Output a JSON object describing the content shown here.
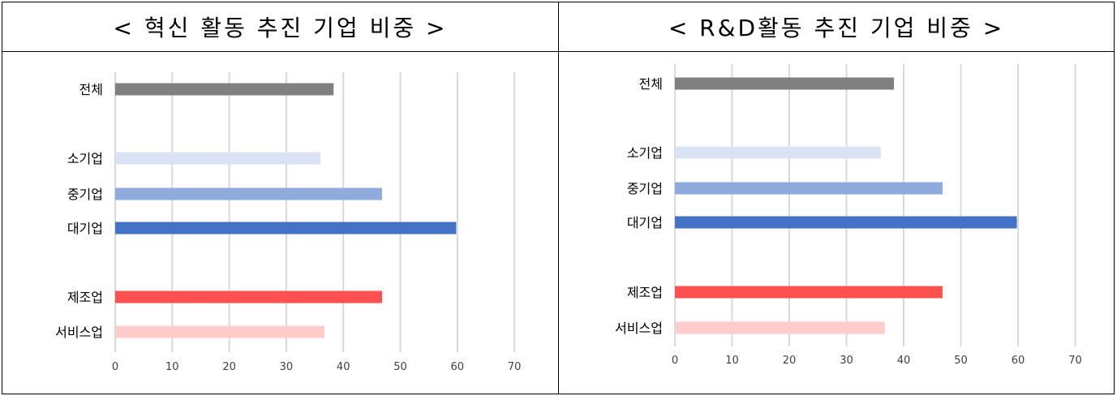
{
  "chart_data": [
    {
      "type": "bar",
      "orientation": "horizontal",
      "title": "< 혁신 활동 추진 기업 비중 >",
      "categories": [
        "전체",
        "소기업",
        "중기업",
        "대기업",
        "제조업",
        "서비스업"
      ],
      "values": [
        38.3,
        36,
        46.8,
        59.8,
        46.8,
        36.7
      ],
      "colors": [
        "#808080",
        "#DAE3F3",
        "#8FAADC",
        "#4472C4",
        "#FF5050",
        "#FFCCCC"
      ],
      "xlim": [
        0,
        70
      ],
      "xticks": [
        "0",
        "10",
        "20",
        "30",
        "40",
        "50",
        "60",
        "70"
      ],
      "grid": true,
      "legend": "none"
    },
    {
      "type": "bar",
      "orientation": "horizontal",
      "title": "< R&D활동 추진 기업 비중 >",
      "categories": [
        "전체",
        "소기업",
        "중기업",
        "대기업",
        "제조업",
        "서비스업"
      ],
      "values": [
        38.3,
        36,
        46.8,
        59.8,
        46.8,
        36.7
      ],
      "colors": [
        "#808080",
        "#DAE3F3",
        "#8FAADC",
        "#4472C4",
        "#FF5050",
        "#FFCCCC"
      ],
      "xlim": [
        0,
        70
      ],
      "xticks": [
        "0",
        "10",
        "20",
        "30",
        "40",
        "50",
        "60",
        "70"
      ],
      "grid": true,
      "legend": "none"
    }
  ]
}
